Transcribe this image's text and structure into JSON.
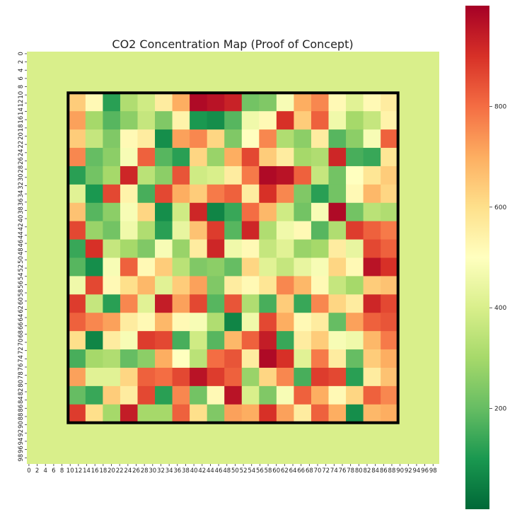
{
  "chart_data": {
    "type": "heatmap",
    "title": "CO2 Concentration Map (Proof of Concept)",
    "xlabel": "",
    "ylabel": "",
    "grid_size": [
      100,
      100
    ],
    "x_tick_labels": [
      "0",
      "2",
      "4",
      "6",
      "8",
      "10",
      "12",
      "14",
      "16",
      "18",
      "20",
      "22",
      "24",
      "26",
      "28",
      "30",
      "32",
      "34",
      "36",
      "38",
      "40",
      "42",
      "44",
      "46",
      "48",
      "50",
      "52",
      "54",
      "56",
      "58",
      "60",
      "62",
      "64",
      "66",
      "68",
      "70",
      "72",
      "74",
      "76",
      "78",
      "80",
      "82",
      "84",
      "86",
      "88",
      "90",
      "92",
      "94",
      "96",
      "98"
    ],
    "y_tick_labels": [
      "0",
      "2",
      "4",
      "6",
      "8",
      "10",
      "12",
      "14",
      "16",
      "18",
      "20",
      "22",
      "24",
      "26",
      "28",
      "30",
      "32",
      "34",
      "36",
      "38",
      "40",
      "42",
      "44",
      "46",
      "48",
      "50",
      "52",
      "54",
      "56",
      "58",
      "60",
      "62",
      "64",
      "66",
      "68",
      "70",
      "72",
      "74",
      "76",
      "78",
      "80",
      "82",
      "84",
      "86",
      "88",
      "90",
      "92",
      "94",
      "96",
      "98"
    ],
    "background_value": 400,
    "colormap": "RdYlGn_r",
    "colormap_colors": [
      "#006837",
      "#1a9850",
      "#66bd63",
      "#a6d96a",
      "#d9ef8b",
      "#ffffbf",
      "#fee08b",
      "#fdae61",
      "#f46d43",
      "#d73027",
      "#a50026"
    ],
    "vmin": 0,
    "vmax": 1000,
    "colorbar_ticks": [
      200,
      400,
      600,
      800
    ],
    "colorbar_tick_labels": [
      "200",
      "400",
      "600",
      "800"
    ],
    "highlight_region": {
      "x_range": [
        10,
        90
      ],
      "y_range": [
        10,
        90
      ],
      "border_color": "#000000"
    },
    "region_values": [
      [
        640,
        520,
        120,
        320,
        380,
        560,
        700,
        980,
        960,
        930,
        220,
        240,
        480,
        700,
        760,
        520,
        420,
        520,
        560
      ],
      [
        720,
        300,
        180,
        260,
        360,
        240,
        540,
        100,
        80,
        180,
        460,
        520,
        900,
        640,
        820,
        460,
        300,
        360,
        540
      ],
      [
        640,
        360,
        240,
        520,
        560,
        80,
        720,
        760,
        620,
        240,
        500,
        760,
        320,
        260,
        560,
        180,
        260,
        480,
        820
      ],
      [
        760,
        200,
        260,
        480,
        820,
        180,
        120,
        620,
        280,
        700,
        860,
        640,
        560,
        300,
        320,
        920,
        160,
        140,
        580
      ],
      [
        120,
        220,
        300,
        920,
        340,
        260,
        840,
        380,
        400,
        560,
        780,
        980,
        960,
        820,
        360,
        220,
        500,
        580,
        640
      ],
      [
        420,
        100,
        860,
        540,
        160,
        860,
        700,
        640,
        780,
        820,
        560,
        900,
        760,
        240,
        120,
        220,
        520,
        680,
        620
      ],
      [
        660,
        180,
        260,
        480,
        620,
        80,
        380,
        920,
        60,
        140,
        800,
        680,
        380,
        220,
        480,
        980,
        220,
        340,
        320
      ],
      [
        860,
        280,
        220,
        460,
        320,
        120,
        440,
        660,
        880,
        180,
        920,
        320,
        460,
        520,
        180,
        320,
        880,
        820,
        780
      ],
      [
        140,
        900,
        360,
        300,
        240,
        480,
        280,
        560,
        920,
        460,
        520,
        360,
        420,
        280,
        300,
        560,
        440,
        860,
        820
      ],
      [
        180,
        80,
        480,
        820,
        520,
        640,
        340,
        240,
        260,
        200,
        620,
        420,
        360,
        440,
        480,
        620,
        520,
        960,
        900
      ],
      [
        460,
        860,
        520,
        600,
        680,
        420,
        640,
        720,
        240,
        560,
        520,
        580,
        760,
        680,
        520,
        360,
        300,
        640,
        660
      ],
      [
        880,
        360,
        120,
        760,
        420,
        940,
        720,
        860,
        180,
        840,
        320,
        160,
        640,
        140,
        760,
        620,
        560,
        920,
        860
      ],
      [
        820,
        760,
        720,
        560,
        520,
        680,
        520,
        480,
        320,
        60,
        460,
        860,
        700,
        520,
        560,
        200,
        720,
        820,
        840
      ],
      [
        600,
        60,
        560,
        480,
        880,
        860,
        160,
        380,
        180,
        680,
        820,
        940,
        140,
        560,
        640,
        480,
        460,
        680,
        780
      ],
      [
        160,
        300,
        320,
        200,
        260,
        700,
        500,
        340,
        800,
        840,
        560,
        980,
        900,
        420,
        780,
        560,
        200,
        640,
        700
      ],
      [
        720,
        420,
        420,
        620,
        820,
        800,
        860,
        960,
        880,
        820,
        280,
        620,
        760,
        160,
        880,
        860,
        120,
        560,
        660
      ],
      [
        200,
        140,
        640,
        560,
        860,
        120,
        760,
        220,
        520,
        960,
        400,
        240,
        480,
        820,
        700,
        520,
        620,
        820,
        760
      ],
      [
        880,
        600,
        300,
        940,
        300,
        300,
        820,
        600,
        240,
        720,
        700,
        900,
        720,
        560,
        820,
        700,
        80,
        680,
        700
      ]
    ]
  }
}
